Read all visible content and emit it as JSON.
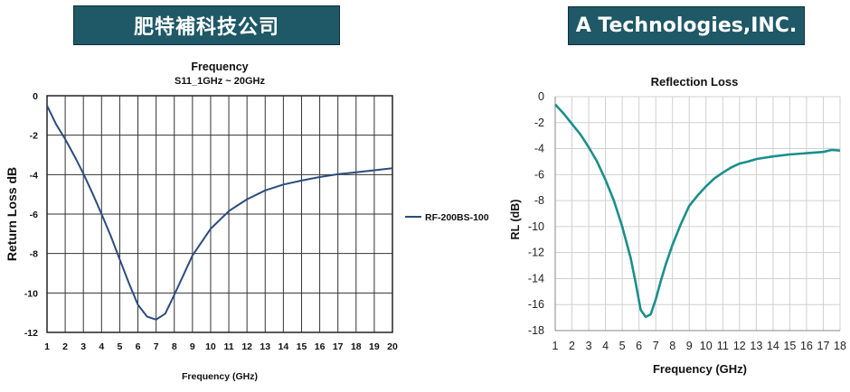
{
  "banners": {
    "left": "肥特補科技公司",
    "right": "A Technologies,INC."
  },
  "chart_data": [
    {
      "type": "line",
      "title": "Frequency",
      "subtitle": "S11_1GHz ~ 20GHz",
      "xlabel": "Frequency (GHz)",
      "ylabel": "Return Loss dB",
      "xlim": [
        1,
        20
      ],
      "ylim": [
        -12,
        0
      ],
      "xticks": [
        1,
        2,
        3,
        4,
        5,
        6,
        7,
        8,
        9,
        10,
        11,
        12,
        13,
        14,
        15,
        16,
        17,
        18,
        19,
        20
      ],
      "yticks": [
        0,
        -2,
        -4,
        -6,
        -8,
        -10,
        -12
      ],
      "grid": true,
      "legend_position": "right",
      "series": [
        {
          "name": "RF-200BS-100",
          "color": "#2b4c7e",
          "x": [
            1,
            1.5,
            2,
            2.5,
            3,
            3.5,
            4,
            4.5,
            5,
            5.5,
            6,
            6.5,
            7,
            7.5,
            8,
            8.5,
            9,
            10,
            11,
            12,
            13,
            14,
            15,
            16,
            17,
            18,
            19,
            20
          ],
          "y": [
            -0.5,
            -1.45,
            -2.2,
            -3.05,
            -3.95,
            -4.95,
            -6.0,
            -7.1,
            -8.3,
            -9.5,
            -10.6,
            -11.2,
            -11.35,
            -11.05,
            -10.1,
            -9.1,
            -8.1,
            -6.75,
            -5.85,
            -5.25,
            -4.8,
            -4.5,
            -4.3,
            -4.12,
            -3.98,
            -3.88,
            -3.78,
            -3.68
          ]
        }
      ]
    },
    {
      "type": "line",
      "title": "Reflection Loss",
      "xlabel": "Frequency (GHz)",
      "ylabel": "RL (dB)",
      "xlim": [
        1,
        18
      ],
      "ylim": [
        -18,
        0
      ],
      "xticks": [
        1,
        2,
        3,
        4,
        5,
        6,
        7,
        8,
        9,
        10,
        11,
        12,
        13,
        14,
        15,
        16,
        17,
        18
      ],
      "yticks": [
        0,
        -2,
        -4,
        -6,
        -8,
        -10,
        -12,
        -14,
        -16,
        -18
      ],
      "grid": true,
      "series": [
        {
          "color": "#1a8f8c",
          "x": [
            1,
            1.5,
            2,
            2.5,
            3,
            3.5,
            4,
            4.5,
            5,
            5.5,
            5.8,
            6.1,
            6.4,
            6.7,
            7,
            7.3,
            7.6,
            8,
            8.5,
            9,
            9.5,
            10,
            10.5,
            11,
            11.5,
            12,
            12.5,
            13,
            13.5,
            14,
            15,
            16,
            17,
            17.5,
            18
          ],
          "y": [
            -0.6,
            -1.3,
            -2.1,
            -2.9,
            -3.9,
            -5.0,
            -6.4,
            -8.0,
            -10.0,
            -12.4,
            -14.3,
            -16.4,
            -16.95,
            -16.75,
            -15.6,
            -14.2,
            -12.9,
            -11.4,
            -9.8,
            -8.4,
            -7.6,
            -6.9,
            -6.3,
            -5.85,
            -5.45,
            -5.15,
            -5.0,
            -4.8,
            -4.7,
            -4.6,
            -4.45,
            -4.35,
            -4.25,
            -4.1,
            -4.15
          ]
        }
      ]
    }
  ]
}
